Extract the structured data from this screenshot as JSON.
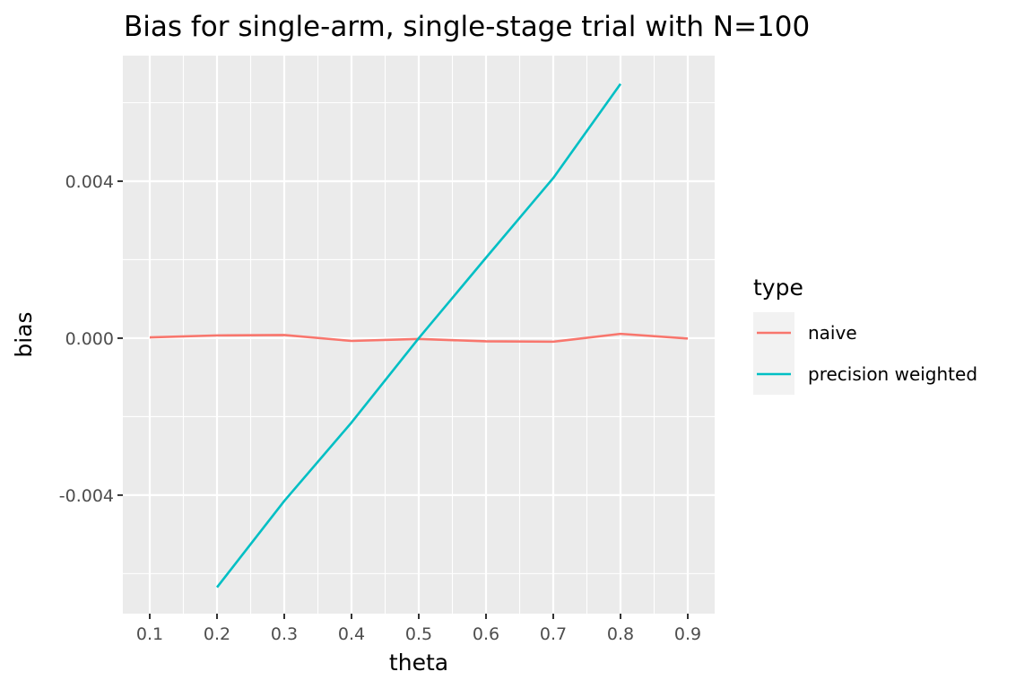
{
  "chart_data": {
    "type": "line",
    "title": "Bias for single-arm, single-stage trial with N=100",
    "xlabel": "theta",
    "ylabel": "bias",
    "x": [
      0.1,
      0.2,
      0.3,
      0.4,
      0.5,
      0.6,
      0.7,
      0.8,
      0.9
    ],
    "x_ticks": [
      "0.1",
      "0.2",
      "0.3",
      "0.4",
      "0.5",
      "0.6",
      "0.7",
      "0.8",
      "0.9"
    ],
    "y_ticks": [
      {
        "value": 0.004,
        "label": "0.004"
      },
      {
        "value": 0.0,
        "label": "0.000"
      },
      {
        "value": -0.004,
        "label": "-0.004"
      }
    ],
    "xlim": [
      0.06,
      0.94
    ],
    "ylim": [
      -0.00702,
      0.0072
    ],
    "grid": true,
    "legend_title": "type",
    "legend_position": "right",
    "series": [
      {
        "name": "naive",
        "color": "#F8766D",
        "x": [
          0.1,
          0.2,
          0.3,
          0.4,
          0.5,
          0.6,
          0.7,
          0.8,
          0.9
        ],
        "values": [
          2e-05,
          7e-05,
          8e-05,
          -7e-05,
          -2e-05,
          -8e-05,
          -9e-05,
          0.00011,
          -1e-05
        ]
      },
      {
        "name": "precision weighted",
        "color": "#00BFC4",
        "x": [
          0.2,
          0.3,
          0.4,
          0.5,
          0.6,
          0.7,
          0.8
        ],
        "values": [
          -0.00635,
          -0.00415,
          -0.00215,
          0.0,
          0.00205,
          0.00408,
          0.00648
        ]
      }
    ]
  }
}
